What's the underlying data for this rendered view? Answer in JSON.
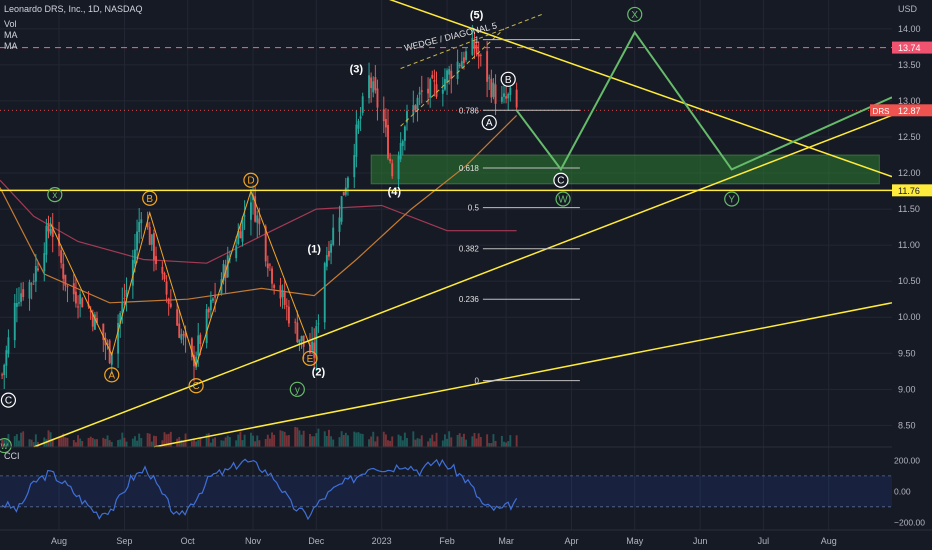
{
  "header": {
    "symbol_line": "Leonardo DRS, Inc., 1D, NASDAQ",
    "indicators": [
      "Vol",
      "MA",
      "MA"
    ]
  },
  "chart_data": {
    "type": "candlestick",
    "symbol": "DRS",
    "currency_label": "USD",
    "y_ticks": [
      8.5,
      9.0,
      9.5,
      10.0,
      10.5,
      11.0,
      11.5,
      12.0,
      12.5,
      13.0,
      13.5,
      14.0
    ],
    "y_range": [
      8.2,
      14.4
    ],
    "x_ticks": [
      {
        "label": "Aug",
        "date": "2022-08-01"
      },
      {
        "label": "Sep",
        "date": "2022-09-01"
      },
      {
        "label": "Oct",
        "date": "2022-10-01"
      },
      {
        "label": "Nov",
        "date": "2022-11-01"
      },
      {
        "label": "Dec",
        "date": "2022-12-01"
      },
      {
        "label": "2023",
        "date": "2023-01-01"
      },
      {
        "label": "Feb",
        "date": "2023-02-01"
      },
      {
        "label": "Mar",
        "date": "2023-03-01"
      },
      {
        "label": "Apr",
        "date": "2023-04-01"
      },
      {
        "label": "May",
        "date": "2023-05-01"
      },
      {
        "label": "Jun",
        "date": "2023-06-01"
      },
      {
        "label": "Jul",
        "date": "2023-07-01"
      },
      {
        "label": "Aug",
        "date": "2023-08-01"
      }
    ],
    "date_range": [
      "2022-07-04",
      "2023-08-31"
    ],
    "price_path": [
      {
        "date": "2022-07-05",
        "price": 9.2
      },
      {
        "date": "2022-07-12",
        "price": 10.3
      },
      {
        "date": "2022-07-19",
        "price": 10.5
      },
      {
        "date": "2022-07-28",
        "price": 11.3
      },
      {
        "date": "2022-08-05",
        "price": 10.4
      },
      {
        "date": "2022-08-14",
        "price": 10.2
      },
      {
        "date": "2022-08-25",
        "price": 9.5
      },
      {
        "date": "2022-09-04",
        "price": 10.6
      },
      {
        "date": "2022-09-09",
        "price": 11.5
      },
      {
        "date": "2022-09-20",
        "price": 10.4
      },
      {
        "date": "2022-10-03",
        "price": 9.35
      },
      {
        "date": "2022-10-15",
        "price": 10.4
      },
      {
        "date": "2022-10-22",
        "price": 10.9
      },
      {
        "date": "2022-10-31",
        "price": 11.7
      },
      {
        "date": "2022-11-10",
        "price": 10.6
      },
      {
        "date": "2022-11-20",
        "price": 9.9
      },
      {
        "date": "2022-11-26",
        "price": 9.55
      },
      {
        "date": "2022-11-30",
        "price": 9.5
      },
      {
        "date": "2022-12-05",
        "price": 10.8
      },
      {
        "date": "2022-12-12",
        "price": 11.5
      },
      {
        "date": "2022-12-19",
        "price": 12.4
      },
      {
        "date": "2022-12-26",
        "price": 13.3
      },
      {
        "date": "2023-01-02",
        "price": 12.7
      },
      {
        "date": "2023-01-06",
        "price": 12.0
      },
      {
        "date": "2023-01-12",
        "price": 12.7
      },
      {
        "date": "2023-01-20",
        "price": 13.1
      },
      {
        "date": "2023-01-28",
        "price": 13.2
      },
      {
        "date": "2023-02-05",
        "price": 13.5
      },
      {
        "date": "2023-02-14",
        "price": 13.75
      },
      {
        "date": "2023-02-22",
        "price": 13.2
      },
      {
        "date": "2023-02-26",
        "price": 12.95
      },
      {
        "date": "2023-03-03",
        "price": 13.05
      },
      {
        "date": "2023-03-06",
        "price": 12.87
      }
    ],
    "volume_profile": [
      0.3,
      0.5,
      0.4,
      0.6,
      0.35,
      0.3,
      0.45,
      0.4,
      0.3,
      0.35,
      0.5,
      0.4,
      0.3,
      0.35,
      0.4,
      0.5,
      0.45,
      0.6,
      0.9,
      0.7,
      0.8,
      0.6,
      0.5,
      0.45,
      0.5,
      0.4,
      0.55,
      0.45,
      0.5,
      0.4,
      0.35,
      0.3,
      0.35
    ],
    "cci": {
      "y_ticks": [
        200.0,
        0.0,
        -200.0
      ],
      "tick_labels": [
        "200.00",
        "0.00",
        "−200.00"
      ],
      "range": [
        -250,
        280
      ],
      "band": [
        -100,
        100
      ],
      "values": [
        -80,
        -120,
        60,
        120,
        40,
        -60,
        -150,
        -100,
        80,
        150,
        -30,
        -180,
        -50,
        100,
        130,
        200,
        160,
        80,
        -90,
        -160,
        -40,
        40,
        90,
        170,
        140,
        180,
        130,
        200,
        150,
        60,
        -100,
        -120,
        -70
      ]
    },
    "ma_slow": [
      {
        "date": "2022-07-04",
        "price": 11.9
      },
      {
        "date": "2022-07-20",
        "price": 11.4
      },
      {
        "date": "2022-08-10",
        "price": 11.05
      },
      {
        "date": "2022-09-10",
        "price": 10.8
      },
      {
        "date": "2022-10-10",
        "price": 10.75
      },
      {
        "date": "2022-11-10",
        "price": 11.2
      },
      {
        "date": "2022-12-01",
        "price": 11.5
      },
      {
        "date": "2023-01-01",
        "price": 11.55
      },
      {
        "date": "2023-02-01",
        "price": 11.2
      },
      {
        "date": "2023-03-06",
        "price": 11.2
      }
    ],
    "ma_fast": [
      {
        "date": "2022-07-04",
        "price": 11.8
      },
      {
        "date": "2022-07-25",
        "price": 10.6
      },
      {
        "date": "2022-08-25",
        "price": 10.2
      },
      {
        "date": "2022-10-01",
        "price": 10.25
      },
      {
        "date": "2022-11-05",
        "price": 10.4
      },
      {
        "date": "2022-11-30",
        "price": 10.3
      },
      {
        "date": "2022-12-20",
        "price": 10.8
      },
      {
        "date": "2023-01-15",
        "price": 11.5
      },
      {
        "date": "2023-02-10",
        "price": 12.1
      },
      {
        "date": "2023-03-06",
        "price": 12.8
      }
    ],
    "trendlines": [
      {
        "name": "descending-resistance",
        "from": {
          "date": "2022-10-20",
          "price": 15.2
        },
        "to": {
          "date": "2023-08-31",
          "price": 11.95
        }
      },
      {
        "name": "ascending-support",
        "from": {
          "date": "2022-07-20",
          "price": 8.2
        },
        "to": {
          "date": "2023-08-31",
          "price": 12.8
        }
      },
      {
        "name": "ascending-long-support",
        "from": {
          "date": "2022-09-15",
          "price": 8.2
        },
        "to": {
          "date": "2023-08-31",
          "price": 10.2
        }
      },
      {
        "name": "horizontal-support",
        "from": {
          "date": "2022-07-04",
          "price": 11.76
        },
        "to": {
          "date": "2023-08-31",
          "price": 11.76
        }
      }
    ],
    "wedge_upper": {
      "from": {
        "date": "2023-01-10",
        "price": 13.45
      },
      "to": {
        "date": "2023-03-18",
        "price": 14.2
      }
    },
    "wedge_lower": {
      "from": {
        "date": "2023-01-10",
        "price": 12.65
      },
      "to": {
        "date": "2023-02-28",
        "price": 14.0
      }
    },
    "resistance_line": {
      "price": 13.74,
      "label": "13.74"
    },
    "support_line": {
      "price": 11.76,
      "label": "11.76"
    },
    "last_price": {
      "price": 12.87,
      "symbol_tag": "DRS",
      "label": "12.87"
    },
    "fibonacci": [
      {
        "label": "1",
        "price": 13.85
      },
      {
        "label": "0.786",
        "price": 12.87
      },
      {
        "label": "0.618",
        "price": 12.07
      },
      {
        "label": "0.5",
        "price": 11.52
      },
      {
        "label": "0.382",
        "price": 10.95
      },
      {
        "label": "0.236",
        "price": 10.25
      },
      {
        "label": "0",
        "price": 9.12
      }
    ],
    "fib_start_date": "2023-02-18",
    "fib_end_date": "2023-04-05",
    "green_zone": {
      "from_date": "2022-12-27",
      "to_date": "2023-08-25",
      "low": 11.85,
      "high": 12.25
    },
    "projection": [
      {
        "date": "2023-03-06",
        "price": 12.87
      },
      {
        "date": "2023-03-27",
        "price": 12.05
      },
      {
        "date": "2023-05-01",
        "price": 13.95
      },
      {
        "date": "2023-06-16",
        "price": 12.05
      },
      {
        "date": "2023-08-31",
        "price": 13.05
      }
    ],
    "wave_labels": [
      {
        "text": "C",
        "date": "2022-07-08",
        "price": 8.85,
        "style": "white-circle"
      },
      {
        "text": "w",
        "date": "2022-07-06",
        "price": 8.22,
        "style": "green-circle"
      },
      {
        "text": "x",
        "date": "2022-07-30",
        "price": 11.7,
        "style": "green-circle"
      },
      {
        "text": "B",
        "date": "2022-09-13",
        "price": 11.65,
        "style": "orange-circle"
      },
      {
        "text": "A",
        "date": "2022-08-26",
        "price": 9.2,
        "style": "orange-circle"
      },
      {
        "text": "C",
        "date": "2022-10-05",
        "price": 9.05,
        "style": "orange-circle"
      },
      {
        "text": "D",
        "date": "2022-10-31",
        "price": 11.9,
        "style": "orange-circle"
      },
      {
        "text": "E",
        "date": "2022-11-28",
        "price": 9.43,
        "style": "orange-circle"
      },
      {
        "text": "y",
        "date": "2022-11-22",
        "price": 9.0,
        "style": "green-circle"
      },
      {
        "text": "(1)",
        "date": "2022-11-30",
        "price": 10.95,
        "style": "plain"
      },
      {
        "text": "(2)",
        "date": "2022-12-02",
        "price": 9.25,
        "style": "plain"
      },
      {
        "text": "(3)",
        "date": "2022-12-20",
        "price": 13.45,
        "style": "plain"
      },
      {
        "text": "(4)",
        "date": "2023-01-07",
        "price": 11.75,
        "style": "plain"
      },
      {
        "text": "(5)",
        "date": "2023-02-15",
        "price": 14.2,
        "style": "plain"
      },
      {
        "text": "A",
        "date": "2023-02-21",
        "price": 12.7,
        "style": "white-circle"
      },
      {
        "text": "B",
        "date": "2023-03-02",
        "price": 13.3,
        "style": "white-circle"
      },
      {
        "text": "C",
        "date": "2023-03-27",
        "price": 11.9,
        "style": "white-circle"
      },
      {
        "text": "W",
        "date": "2023-03-28",
        "price": 11.64,
        "style": "green-circle"
      },
      {
        "text": "X",
        "date": "2023-05-01",
        "price": 14.2,
        "style": "green-circle"
      },
      {
        "text": "Y",
        "date": "2023-06-16",
        "price": 11.64,
        "style": "green-circle"
      }
    ],
    "annotation": {
      "text": "WEDGE / DIAGONAL 5",
      "date": "2023-02-03",
      "price": 13.85
    }
  },
  "colors": {
    "background": "#161a25",
    "up": "#26a69a",
    "down": "#ef5350",
    "yellow": "#ffeb3b",
    "orange": "#f5a623",
    "green_projection": "#66bb6a",
    "zone": "#2e7d32",
    "ma_slow": "#a33a54",
    "ma_fast": "#c47a33",
    "resistance": "#ef5370",
    "cci_line": "#3f6fd8"
  }
}
